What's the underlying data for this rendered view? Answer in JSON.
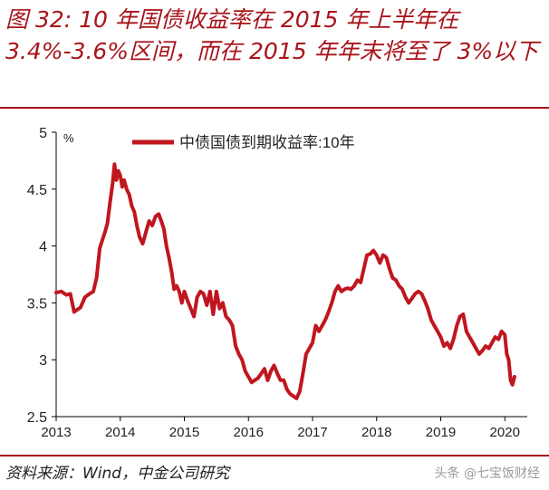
{
  "figure": {
    "title": "图 32: 10 年国债收益率在 2015 年上半年在 3.4%-3.6%区间，而在 2015 年年末将至了 3%以下",
    "source": "资料来源：Wind，中金公司研究",
    "watermark": "头条 @七宝饭财经"
  },
  "colors": {
    "series": "#c0161f",
    "accent": "#a8141b"
  },
  "chart_data": {
    "type": "line",
    "title": "",
    "xlabel": "",
    "ylabel": "%",
    "xlim": [
      2013,
      2020.35
    ],
    "ylim": [
      2.5,
      5
    ],
    "yticks": [
      "5",
      "4.5",
      "4",
      "3.5",
      "3",
      "2.5"
    ],
    "xticks": [
      "2013",
      "2014",
      "2015",
      "2016",
      "2017",
      "2018",
      "2019",
      "2020"
    ],
    "grid": false,
    "legend": "top-center",
    "series": [
      {
        "name": "中债国债到期收益率:10年",
        "x": [
          2013.0,
          2013.08,
          2013.16,
          2013.22,
          2013.28,
          2013.33,
          2013.38,
          2013.45,
          2013.52,
          2013.58,
          2013.63,
          2013.68,
          2013.72,
          2013.76,
          2013.8,
          2013.84,
          2013.88,
          2013.91,
          2013.94,
          2013.97,
          2014.0,
          2014.03,
          2014.06,
          2014.1,
          2014.14,
          2014.18,
          2014.22,
          2014.26,
          2014.3,
          2014.35,
          2014.4,
          2014.45,
          2014.5,
          2014.55,
          2014.6,
          2014.64,
          2014.68,
          2014.72,
          2014.76,
          2014.8,
          2014.84,
          2014.88,
          2014.92,
          2014.96,
          2015.0,
          2015.05,
          2015.1,
          2015.15,
          2015.2,
          2015.25,
          2015.3,
          2015.35,
          2015.4,
          2015.45,
          2015.5,
          2015.55,
          2015.6,
          2015.65,
          2015.7,
          2015.75,
          2015.8,
          2015.85,
          2015.9,
          2015.95,
          2016.0,
          2016.05,
          2016.1,
          2016.15,
          2016.2,
          2016.25,
          2016.3,
          2016.35,
          2016.4,
          2016.45,
          2016.5,
          2016.55,
          2016.6,
          2016.65,
          2016.7,
          2016.75,
          2016.8,
          2016.85,
          2016.9,
          2016.95,
          2017.0,
          2017.05,
          2017.1,
          2017.15,
          2017.2,
          2017.25,
          2017.3,
          2017.35,
          2017.4,
          2017.45,
          2017.5,
          2017.55,
          2017.6,
          2017.65,
          2017.7,
          2017.75,
          2017.8,
          2017.85,
          2017.9,
          2017.95,
          2018.0,
          2018.05,
          2018.1,
          2018.15,
          2018.2,
          2018.25,
          2018.3,
          2018.35,
          2018.4,
          2018.45,
          2018.5,
          2018.55,
          2018.6,
          2018.65,
          2018.7,
          2018.75,
          2018.8,
          2018.85,
          2018.9,
          2018.95,
          2019.0,
          2019.05,
          2019.1,
          2019.15,
          2019.2,
          2019.25,
          2019.3,
          2019.35,
          2019.4,
          2019.45,
          2019.5,
          2019.55,
          2019.6,
          2019.65,
          2019.7,
          2019.75,
          2019.8,
          2019.85,
          2019.9,
          2019.95,
          2020.0,
          2020.03,
          2020.06,
          2020.09,
          2020.12,
          2020.15
        ],
        "values": [
          3.59,
          3.6,
          3.57,
          3.58,
          3.42,
          3.44,
          3.46,
          3.55,
          3.58,
          3.6,
          3.72,
          3.98,
          4.05,
          4.12,
          4.2,
          4.38,
          4.55,
          4.72,
          4.58,
          4.66,
          4.62,
          4.52,
          4.58,
          4.5,
          4.45,
          4.35,
          4.3,
          4.18,
          4.08,
          4.02,
          4.12,
          4.22,
          4.18,
          4.26,
          4.28,
          4.22,
          4.15,
          4.0,
          3.9,
          3.78,
          3.62,
          3.65,
          3.6,
          3.5,
          3.6,
          3.52,
          3.45,
          3.38,
          3.55,
          3.6,
          3.58,
          3.48,
          3.6,
          3.4,
          3.6,
          3.45,
          3.5,
          3.38,
          3.35,
          3.3,
          3.12,
          3.05,
          3.0,
          2.9,
          2.85,
          2.8,
          2.82,
          2.84,
          2.88,
          2.92,
          2.82,
          2.9,
          2.95,
          2.88,
          2.82,
          2.82,
          2.74,
          2.7,
          2.68,
          2.66,
          2.72,
          2.88,
          3.05,
          3.1,
          3.15,
          3.3,
          3.25,
          3.3,
          3.35,
          3.42,
          3.5,
          3.6,
          3.65,
          3.6,
          3.62,
          3.63,
          3.62,
          3.65,
          3.7,
          3.68,
          3.8,
          3.92,
          3.93,
          3.96,
          3.92,
          3.85,
          3.92,
          3.9,
          3.8,
          3.72,
          3.7,
          3.65,
          3.62,
          3.55,
          3.5,
          3.54,
          3.58,
          3.6,
          3.58,
          3.52,
          3.45,
          3.35,
          3.3,
          3.25,
          3.2,
          3.12,
          3.15,
          3.1,
          3.18,
          3.3,
          3.38,
          3.4,
          3.25,
          3.2,
          3.15,
          3.1,
          3.05,
          3.08,
          3.12,
          3.1,
          3.15,
          3.2,
          3.18,
          3.25,
          3.22,
          3.05,
          3.0,
          2.82,
          2.78,
          2.85
        ]
      }
    ]
  }
}
